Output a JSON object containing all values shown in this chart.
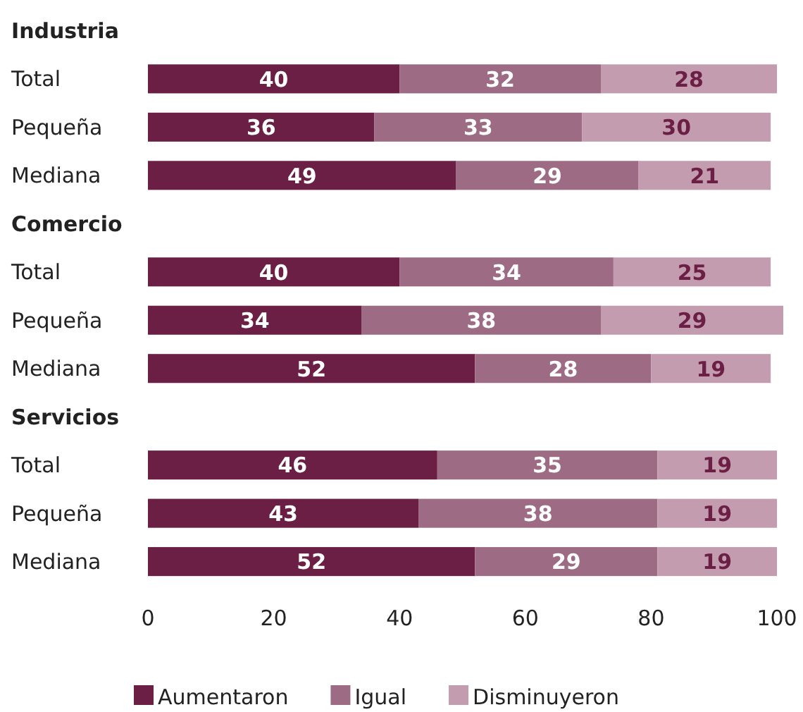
{
  "chart_data": {
    "type": "bar",
    "orientation": "horizontal",
    "stacked": true,
    "data_labels": true,
    "legend": "bottom",
    "categories": [
      "Industria",
      "Total",
      "Pequeña",
      "Mediana",
      "Comercio",
      "Total",
      "Pequeña",
      "Mediana",
      "Servicios",
      "Total",
      "Pequeña",
      "Mediana"
    ],
    "series": [
      {
        "name": "Aumentaron",
        "color": "#6b1f45",
        "values": [
          null,
          40,
          36,
          49,
          null,
          40,
          34,
          52,
          null,
          46,
          43,
          52
        ]
      },
      {
        "name": "Igual",
        "color": "#9e6b84",
        "values": [
          null,
          32,
          33,
          29,
          null,
          34,
          38,
          28,
          null,
          35,
          38,
          29
        ]
      },
      {
        "name": "Disminuyeron",
        "color": "#c39cb0",
        "values": [
          null,
          28,
          30,
          21,
          null,
          25,
          29,
          19,
          null,
          19,
          19,
          19
        ]
      }
    ],
    "xlim": [
      0,
      101
    ],
    "xticks": [
      0,
      20,
      40,
      60,
      80,
      100
    ]
  }
}
